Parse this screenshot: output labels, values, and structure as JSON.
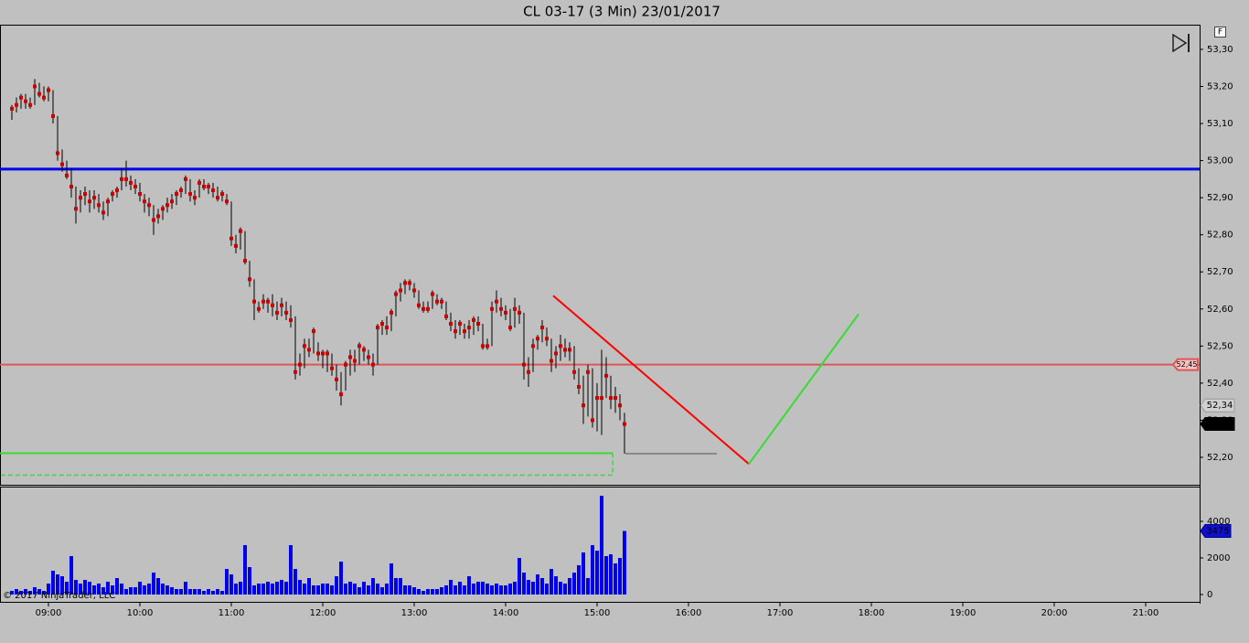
{
  "toolbar": {
    "f_button": "F"
  },
  "chart_data": [
    {
      "type": "ohlc",
      "title": "CL 03-17 (3 Min)  23/01/2017",
      "x": [
        8.6,
        8.65,
        8.7,
        8.75,
        8.8,
        8.85,
        8.9,
        8.95,
        9.0,
        9.05,
        9.1,
        9.15,
        9.2,
        9.25,
        9.3,
        9.35,
        9.4,
        9.45,
        9.5,
        9.55,
        9.6,
        9.65,
        9.7,
        9.75,
        9.8,
        9.85,
        9.9,
        9.95,
        10.0,
        10.05,
        10.1,
        10.15,
        10.2,
        10.25,
        10.3,
        10.35,
        10.4,
        10.45,
        10.5,
        10.55,
        10.6,
        10.65,
        10.7,
        10.75,
        10.8,
        10.85,
        10.9,
        10.95,
        11.0,
        11.05,
        11.1,
        11.15,
        11.2,
        11.25,
        11.3,
        11.35,
        11.4,
        11.45,
        11.5,
        11.55,
        11.6,
        11.65,
        11.7,
        11.75,
        11.8,
        11.85,
        11.9,
        11.95,
        12.0,
        12.05,
        12.1,
        12.15,
        12.2,
        12.25,
        12.3,
        12.35,
        12.4,
        12.45,
        12.5,
        12.55,
        12.6,
        12.65,
        12.7,
        12.75,
        12.8,
        12.85,
        12.9,
        12.95,
        13.0,
        13.05,
        13.1,
        13.15,
        13.2,
        13.25,
        13.3,
        13.35,
        13.4,
        13.45,
        13.5,
        13.55,
        13.6,
        13.65,
        13.7,
        13.75,
        13.8,
        13.85,
        13.9,
        13.95,
        14.0,
        14.05,
        14.1,
        14.15,
        14.2,
        14.25,
        14.3,
        14.35,
        14.4,
        14.45,
        14.5,
        14.55,
        14.6,
        14.65,
        14.7,
        14.75,
        14.8,
        14.85,
        14.9,
        14.95,
        15.0,
        15.05,
        15.1,
        15.15,
        15.2,
        15.25,
        15.3
      ],
      "high": [
        53.15,
        53.17,
        53.18,
        53.18,
        53.17,
        53.22,
        53.21,
        53.2,
        53.2,
        53.19,
        53.12,
        53.03,
        53.0,
        52.98,
        52.93,
        52.92,
        52.93,
        52.92,
        52.92,
        52.91,
        52.89,
        52.9,
        52.92,
        52.93,
        52.98,
        53.0,
        52.96,
        52.95,
        52.94,
        52.91,
        52.9,
        52.88,
        52.87,
        52.88,
        52.9,
        52.91,
        52.92,
        52.93,
        52.96,
        52.95,
        52.92,
        52.95,
        52.95,
        52.94,
        52.94,
        52.93,
        52.92,
        52.91,
        52.89,
        52.8,
        52.82,
        52.81,
        52.73,
        52.68,
        52.62,
        52.64,
        52.63,
        52.64,
        52.62,
        52.63,
        52.62,
        52.61,
        52.58,
        52.48,
        52.52,
        52.52,
        52.55,
        52.51,
        52.49,
        52.49,
        52.48,
        52.45,
        52.43,
        52.46,
        52.49,
        52.49,
        52.51,
        52.5,
        52.49,
        52.48,
        52.56,
        52.57,
        52.58,
        52.6,
        52.65,
        52.67,
        52.68,
        52.68,
        52.67,
        52.65,
        52.62,
        52.62,
        52.65,
        52.64,
        52.63,
        52.62,
        52.59,
        52.57,
        52.57,
        52.56,
        52.57,
        52.58,
        52.58,
        52.56,
        52.52,
        52.62,
        52.65,
        52.63,
        52.61,
        52.6,
        52.63,
        52.61,
        52.59,
        52.47,
        52.52,
        52.53,
        52.57,
        52.55,
        52.52,
        52.5,
        52.53,
        52.52,
        52.51,
        52.5,
        52.44,
        52.42,
        52.45,
        52.44,
        52.4,
        52.49,
        52.47,
        52.42,
        52.39,
        52.37,
        52.32
      ],
      "low": [
        53.11,
        53.13,
        53.14,
        53.14,
        53.14,
        53.15,
        53.17,
        53.16,
        53.16,
        53.1,
        53.0,
        52.97,
        52.95,
        52.9,
        52.83,
        52.86,
        52.88,
        52.86,
        52.87,
        52.86,
        52.84,
        52.85,
        52.89,
        52.9,
        52.92,
        52.93,
        52.92,
        52.91,
        52.89,
        52.86,
        52.85,
        52.8,
        52.83,
        52.84,
        52.86,
        52.87,
        52.88,
        52.9,
        52.91,
        52.89,
        52.88,
        52.9,
        52.92,
        52.91,
        52.9,
        52.89,
        52.89,
        52.88,
        52.77,
        52.75,
        52.76,
        52.72,
        52.66,
        52.57,
        52.59,
        52.6,
        52.59,
        52.58,
        52.57,
        52.58,
        52.57,
        52.55,
        52.41,
        52.42,
        52.44,
        52.47,
        52.48,
        52.46,
        52.44,
        52.43,
        52.42,
        52.38,
        52.34,
        52.38,
        52.42,
        52.43,
        52.45,
        52.46,
        52.45,
        52.42,
        52.45,
        52.53,
        52.53,
        52.54,
        52.58,
        52.62,
        52.64,
        52.65,
        52.63,
        52.6,
        52.59,
        52.59,
        52.6,
        52.61,
        52.6,
        52.57,
        52.54,
        52.52,
        52.53,
        52.52,
        52.52,
        52.53,
        52.54,
        52.49,
        52.49,
        52.5,
        52.59,
        52.58,
        52.57,
        52.54,
        52.55,
        52.56,
        52.41,
        52.39,
        52.43,
        52.49,
        52.51,
        52.5,
        52.43,
        52.44,
        52.46,
        52.47,
        52.46,
        52.41,
        52.37,
        52.29,
        52.31,
        52.28,
        52.27,
        52.26,
        52.36,
        52.33,
        52.32,
        52.3,
        52.21
      ],
      "close": [
        53.14,
        53.15,
        53.17,
        53.16,
        53.15,
        53.2,
        53.18,
        53.17,
        53.19,
        53.12,
        53.02,
        52.99,
        52.96,
        52.93,
        52.87,
        52.9,
        52.91,
        52.89,
        52.9,
        52.88,
        52.86,
        52.89,
        52.91,
        52.92,
        52.95,
        52.95,
        52.94,
        52.93,
        52.91,
        52.89,
        52.88,
        52.84,
        52.85,
        52.87,
        52.88,
        52.89,
        52.91,
        52.92,
        52.95,
        52.91,
        52.9,
        52.94,
        52.93,
        52.93,
        52.92,
        52.9,
        52.91,
        52.89,
        52.79,
        52.77,
        52.81,
        52.73,
        52.68,
        52.62,
        52.6,
        52.62,
        52.62,
        52.61,
        52.59,
        52.61,
        52.59,
        52.57,
        52.43,
        52.45,
        52.5,
        52.49,
        52.54,
        52.48,
        52.48,
        52.48,
        52.44,
        52.41,
        52.37,
        52.45,
        52.47,
        52.46,
        52.5,
        52.49,
        52.47,
        52.45,
        52.55,
        52.56,
        52.55,
        52.59,
        52.64,
        52.65,
        52.67,
        52.67,
        52.65,
        52.61,
        52.6,
        52.6,
        52.64,
        52.62,
        52.62,
        52.58,
        52.56,
        52.54,
        52.56,
        52.54,
        52.55,
        52.57,
        52.56,
        52.5,
        52.5,
        52.6,
        52.62,
        52.6,
        52.59,
        52.55,
        52.6,
        52.59,
        52.45,
        52.43,
        52.5,
        52.52,
        52.55,
        52.52,
        52.46,
        52.48,
        52.5,
        52.49,
        52.49,
        52.43,
        52.39,
        52.34,
        52.43,
        52.3,
        52.36,
        52.36,
        52.42,
        52.36,
        52.36,
        52.34,
        52.29
      ],
      "bar_color": "#000000",
      "close_color": "#cc0000",
      "xlim": [
        8.47,
        21.59
      ],
      "ylim": [
        52.126,
        53.364
      ],
      "yticks": [
        {
          "value": 53.3,
          "label": "53,30"
        },
        {
          "value": 53.2,
          "label": "53,20"
        },
        {
          "value": 53.1,
          "label": "53,10"
        },
        {
          "value": 53.0,
          "label": "53,00"
        },
        {
          "value": 52.9,
          "label": "52,90"
        },
        {
          "value": 52.8,
          "label": "52,80"
        },
        {
          "value": 52.7,
          "label": "52,70"
        },
        {
          "value": 52.6,
          "label": "52,60"
        },
        {
          "value": 52.5,
          "label": "52,50"
        },
        {
          "value": 52.4,
          "label": "52,40"
        },
        {
          "value": 52.3,
          "label": "52,30"
        },
        {
          "value": 52.2,
          "label": "52,20"
        }
      ],
      "horizontal_lines": [
        {
          "y": 52.977,
          "color": "#0000ee"
        },
        {
          "y": {
            "value": 52.45,
            "label": "52,45"
          },
          "color": "#e05555"
        }
      ],
      "trend_lines": [
        {
          "x": [
            14.52,
            16.66
          ],
          "y": [
            52.636,
            52.182
          ],
          "color": "#ff0000"
        },
        {
          "x": [
            16.66,
            17.86
          ],
          "y": [
            52.182,
            52.586
          ],
          "color": "#33dd33"
        },
        {
          "x": [
            15.31,
            16.31
          ],
          "y": [
            52.21,
            52.21
          ],
          "color": "#888888"
        }
      ],
      "zone": {
        "x": [
          8.47,
          15.17
        ],
        "y": [
          52.152,
          52.211
        ],
        "color": "#33dd33"
      },
      "price_markers": [
        {
          "value": 52.34,
          "label": "52,34",
          "color": "#d0d0d0"
        },
        {
          "value": 52.29,
          "label": "52,29",
          "color": "#000000"
        }
      ]
    },
    {
      "type": "bar",
      "annotation": "© 2017 NinjaTrader, LLC",
      "color": "#0000ee",
      "values": [
        200,
        300,
        200,
        300,
        200,
        400,
        300,
        200,
        600,
        1300,
        1100,
        1000,
        700,
        2100,
        800,
        600,
        800,
        700,
        500,
        600,
        400,
        700,
        500,
        900,
        600,
        300,
        400,
        400,
        700,
        500,
        600,
        1200,
        900,
        600,
        500,
        400,
        300,
        300,
        700,
        300,
        300,
        300,
        200,
        300,
        200,
        300,
        200,
        1400,
        1100,
        600,
        700,
        2700,
        1500,
        500,
        600,
        600,
        700,
        600,
        700,
        800,
        700,
        2700,
        1400,
        800,
        600,
        900,
        500,
        500,
        600,
        600,
        500,
        1000,
        1800,
        600,
        700,
        600,
        400,
        700,
        500,
        900,
        600,
        400,
        600,
        1700,
        900,
        900,
        500,
        500,
        400,
        300,
        200,
        300,
        300,
        300,
        400,
        500,
        800,
        500,
        700,
        500,
        1000,
        600,
        700,
        700,
        600,
        500,
        600,
        500,
        500,
        600,
        700,
        2000,
        1200,
        800,
        700,
        1100,
        900,
        600,
        1400,
        1000,
        700,
        600,
        900,
        1200,
        1600,
        2300,
        900,
        2700,
        2400,
        5400,
        2100,
        2200,
        1700,
        2000,
        3475
      ],
      "last_value_marker": 3475,
      "xlim": [
        8.47,
        21.59
      ],
      "ylim": [
        -400,
        5900
      ],
      "yticks": [
        0,
        2000,
        4000
      ],
      "xticks": [
        {
          "value": 9,
          "label": "09:00"
        },
        {
          "value": 10,
          "label": "10:00"
        },
        {
          "value": 11,
          "label": "11:00"
        },
        {
          "value": 12,
          "label": "12:00"
        },
        {
          "value": 13,
          "label": "13:00"
        },
        {
          "value": 14,
          "label": "14:00"
        },
        {
          "value": 15,
          "label": "15:00"
        },
        {
          "value": 16,
          "label": "16:00"
        },
        {
          "value": 17,
          "label": "17:00"
        },
        {
          "value": 18,
          "label": "18:00"
        },
        {
          "value": 19,
          "label": "19:00"
        },
        {
          "value": 20,
          "label": "20:00"
        },
        {
          "value": 21,
          "label": "21:00"
        }
      ]
    }
  ]
}
